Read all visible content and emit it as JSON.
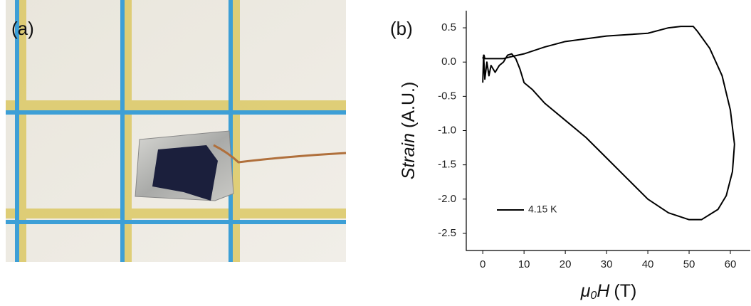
{
  "panel_a": {
    "label": "(a)"
  },
  "chart_data": {
    "type": "line",
    "panel_label": "(b)",
    "x_label": [
      "μ",
      "0",
      "H",
      "(T)"
    ],
    "y_label": [
      "Strain",
      "(A.U.)"
    ],
    "x": [
      0,
      0.3,
      0.5,
      2,
      5,
      7,
      10,
      15,
      20,
      30,
      40,
      45,
      48,
      51,
      52,
      55,
      58,
      60,
      61,
      60.5,
      59,
      57,
      53,
      50,
      45,
      40,
      35,
      30,
      25,
      20,
      15,
      12,
      10,
      9,
      8,
      7,
      6,
      5,
      4,
      3,
      2,
      1.5,
      1,
      0.5,
      0.2,
      0
    ],
    "series": [
      {
        "name": "4.15 K",
        "color": "#000000",
        "values": [
          0.05,
          0.1,
          0.05,
          0.05,
          0.05,
          0.08,
          0.12,
          0.22,
          0.3,
          0.38,
          0.42,
          0.5,
          0.52,
          0.52,
          0.45,
          0.2,
          -0.2,
          -0.7,
          -1.2,
          -1.6,
          -1.95,
          -2.15,
          -2.3,
          -2.3,
          -2.2,
          -2.0,
          -1.7,
          -1.4,
          -1.1,
          -0.85,
          -0.6,
          -0.4,
          -0.3,
          -0.1,
          0.05,
          0.12,
          0.1,
          0,
          -0.05,
          -0.15,
          -0.05,
          -0.2,
          0,
          -0.25,
          0.1,
          -0.3
        ]
      }
    ],
    "xlim": [
      -4,
      65
    ],
    "xticks": [
      0,
      10,
      20,
      30,
      40,
      50,
      60
    ],
    "ylim": [
      -2.75,
      0.75
    ],
    "yticks": [
      {
        "value": 0.5,
        "label": "0.5"
      },
      {
        "value": 0,
        "label": "0.0"
      },
      {
        "value": -0.5,
        "label": "-0.5"
      },
      {
        "value": -1,
        "label": "-1.0"
      },
      {
        "value": -1.5,
        "label": "-1.5"
      },
      {
        "value": -2,
        "label": "-2.0"
      },
      {
        "value": -2.5,
        "label": "-2.5"
      }
    ],
    "grid": false
  }
}
